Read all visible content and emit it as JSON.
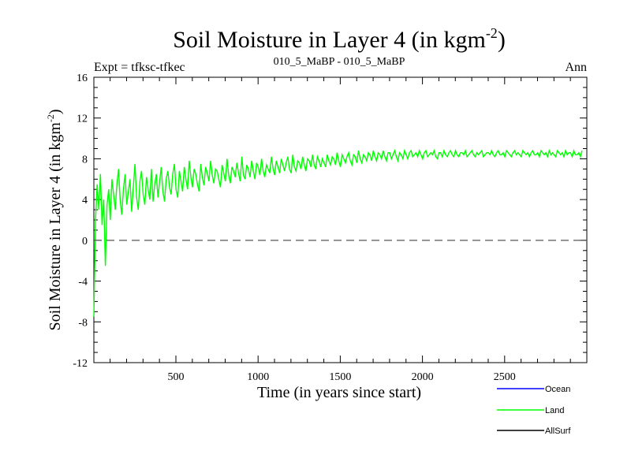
{
  "chart_data": {
    "type": "line",
    "title": "Soil Moisture in Layer 4 (in kgm",
    "title_superscript": "-2",
    "title_close": ")",
    "subtitle_left": "Expt = tfksc-tfkec",
    "subtitle_center": "010_5_MaBP - 010_5_MaBP",
    "subtitle_right": "Ann",
    "xlabel": "Time (in years since start)",
    "ylabel": "Soil Moisture in Layer 4 (in kgm",
    "ylabel_superscript": "-2",
    "ylabel_close": ")",
    "xlim": [
      1,
      3000
    ],
    "ylim": [
      -12,
      16
    ],
    "x_ticks": [
      500,
      1000,
      1500,
      2000,
      2500
    ],
    "x_tick_labels": [
      "500",
      "1000",
      "1500",
      "2000",
      "2500"
    ],
    "y_ticks": [
      -12,
      -8,
      -4,
      0,
      4,
      8,
      12,
      16
    ],
    "y_tick_labels": [
      "-12",
      "-8",
      "-4",
      "0",
      "4",
      "8",
      "12",
      "16"
    ],
    "reference_line": {
      "y": 0,
      "style": "dashed",
      "color": "#555555"
    },
    "series": [
      {
        "name": "Land",
        "color": "#00ff00",
        "x_start": 1,
        "x_step": 10,
        "values": [
          -7.5,
          2,
          5.5,
          3,
          6.5,
          1.5,
          4,
          -2.5,
          3.5,
          5,
          2,
          6,
          4.5,
          3,
          5.5,
          7,
          4,
          2.5,
          5,
          6.5,
          3.5,
          4.8,
          6,
          2.8,
          5.2,
          7.5,
          4.2,
          3,
          5.8,
          6.8,
          4.5,
          3.5,
          6.2,
          5,
          4,
          7,
          3.8,
          5.5,
          6.5,
          4.2,
          5.8,
          7.2,
          4.8,
          3.8,
          6,
          6.8,
          5.2,
          4.5,
          6.5,
          7.5,
          5,
          4.2,
          6.8,
          5.8,
          4.8,
          7.2,
          6,
          5,
          7.8,
          6.2,
          5.2,
          7,
          6.5,
          5.5,
          4.8,
          7.5,
          6.2,
          5.4,
          7.2,
          6.6,
          5.8,
          7.8,
          6.4,
          5.6,
          7,
          6.8,
          6,
          5.2,
          7.4,
          6.6,
          5.8,
          8,
          6.4,
          5.6,
          7.2,
          6.8,
          6.2,
          7.6,
          6.6,
          5.8,
          8.2,
          6.4,
          6,
          7.4,
          7,
          6.2,
          7.8,
          6.8,
          6,
          7.6,
          7.2,
          6.4,
          8,
          6.8,
          6.2,
          7.4,
          7,
          6.6,
          8.2,
          7,
          6.4,
          7.8,
          7.2,
          6.6,
          8,
          7.4,
          6.8,
          7.6,
          8.2,
          7,
          6.6,
          8.4,
          7.2,
          6.8,
          7.8,
          7.6,
          7,
          8.2,
          7.4,
          6.8,
          8,
          7.8,
          7.2,
          8.4,
          7.4,
          7,
          8.2,
          7.8,
          7.2,
          8,
          7.6,
          7.2,
          8.4,
          7.8,
          7.4,
          8.2,
          8,
          7.4,
          8.6,
          7.8,
          7.2,
          8.4,
          8,
          7.6,
          8.2,
          8.6,
          7.8,
          7.4,
          8.4,
          8.2,
          7.6,
          8.8,
          8,
          7.6,
          8.4,
          8.2,
          7.8,
          8.6,
          8.4,
          7.8,
          8.8,
          8.2,
          7.8,
          8.6,
          8.4,
          8,
          8.8,
          8.2,
          7.8,
          8.6,
          8.6,
          8,
          8.4,
          8.8,
          8.2,
          7.8,
          8.6,
          8.4,
          8,
          8.8,
          8.4,
          8,
          8.6,
          8.8,
          8.2,
          8.4,
          8.6,
          8.2,
          8.8,
          8.4,
          8,
          8.6,
          8.8,
          8.2,
          8.4,
          8.6,
          8.4,
          8.8,
          8.2,
          8,
          8.6,
          8.6,
          8.2,
          8.8,
          8.4,
          8.2,
          8.6,
          8.8,
          8.4,
          8.2,
          8.8,
          8.4,
          8.2,
          8.6,
          8.6,
          8.4,
          8.8,
          8.2,
          8.4,
          8.6,
          8.8,
          8.4,
          8.2,
          8.6,
          8.4,
          8.6,
          8.8,
          8.2,
          8.4,
          8.6,
          8.6,
          8.4,
          8.8,
          8.4,
          8.2,
          8.6,
          8.8,
          8.4,
          8.4,
          8.6,
          8.2,
          8.8,
          8.6,
          8.4,
          8.2,
          8.6,
          8.8,
          8.4,
          8.6,
          8.4,
          8.2,
          8.8,
          8.6,
          8.4,
          8.6,
          8.2,
          8.6,
          8.8,
          8.4,
          8.4,
          8.6,
          8.2,
          8.8,
          8.6,
          8.4,
          8.6,
          8.2,
          8.8,
          8.4,
          8.6,
          8.4,
          8.2,
          8.8,
          8.6,
          8.4,
          8.6,
          8.2,
          8.8,
          8.4,
          8.6,
          8.6,
          8.2,
          8.8,
          8.4,
          8.4,
          8.6,
          8.2,
          8.8
        ]
      },
      {
        "name": "Ocean",
        "color": "#0000ff",
        "values": []
      },
      {
        "name": "AllSurf",
        "color": "#000000",
        "values": []
      }
    ],
    "legend": {
      "placement": "bottom-right",
      "entries": [
        {
          "label": "Ocean",
          "color": "#0000ff"
        },
        {
          "label": "Land",
          "color": "#00ff00"
        },
        {
          "label": "AllSurf",
          "color": "#000000"
        }
      ]
    }
  }
}
